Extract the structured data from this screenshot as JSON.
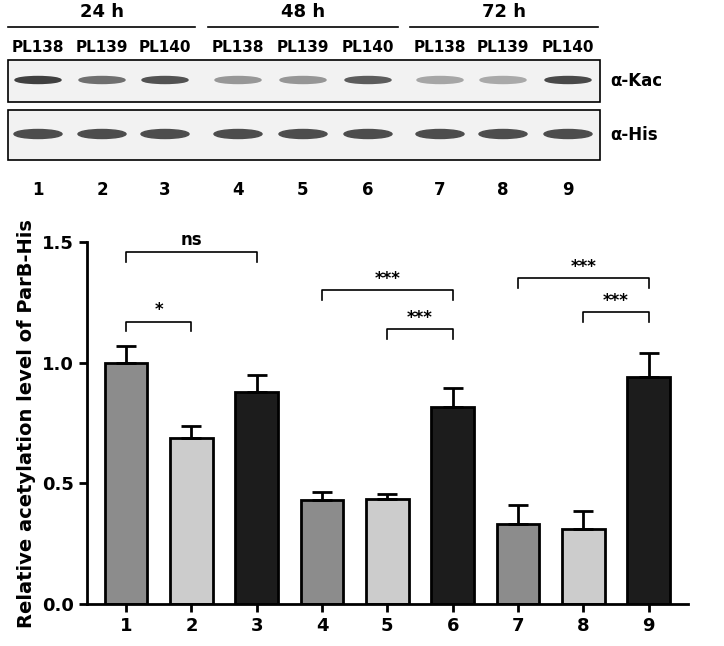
{
  "blot": {
    "time_points": [
      "24 h",
      "48 h",
      "72 h"
    ],
    "strains": [
      "PL138",
      "PL139",
      "PL140"
    ],
    "rows": [
      "α-Kac",
      "α-His"
    ],
    "lanes": [
      "1",
      "2",
      "3",
      "4",
      "5",
      "6",
      "7",
      "8",
      "9"
    ]
  },
  "chart_data": {
    "type": "bar",
    "y_label": "Relative acetylation level of ParB-His",
    "categories": [
      "1",
      "2",
      "3",
      "4",
      "5",
      "6",
      "7",
      "8",
      "9"
    ],
    "values": [
      1.0,
      0.69,
      0.88,
      0.43,
      0.435,
      0.815,
      0.33,
      0.31,
      0.94
    ],
    "error": [
      0.07,
      0.05,
      0.07,
      0.035,
      0.02,
      0.08,
      0.08,
      0.075,
      0.1
    ],
    "colors": [
      "#8c8c8c",
      "#cccccc",
      "#1c1c1c",
      "#8c8c8c",
      "#cccccc",
      "#1c1c1c",
      "#8c8c8c",
      "#cccccc",
      "#1c1c1c"
    ],
    "ylim": [
      0,
      1.5
    ],
    "yticks": [
      {
        "value": 0,
        "label": "0.0"
      },
      {
        "value": 0.5,
        "label": "0.5"
      },
      {
        "value": 1.0,
        "label": "1.0"
      },
      {
        "value": 1.5,
        "label": "1.5"
      }
    ],
    "significance": [
      {
        "from": "1",
        "to": "3",
        "y": 1.46,
        "label": "ns"
      },
      {
        "from": "1",
        "to": "2",
        "y": 1.17,
        "label": "*"
      },
      {
        "from": "4",
        "to": "6",
        "y": 1.3,
        "label": "***"
      },
      {
        "from": "5",
        "to": "6",
        "y": 1.14,
        "label": "***"
      },
      {
        "from": "7",
        "to": "9",
        "y": 1.35,
        "label": "***"
      },
      {
        "from": "8",
        "to": "9",
        "y": 1.21,
        "label": "***"
      }
    ]
  }
}
